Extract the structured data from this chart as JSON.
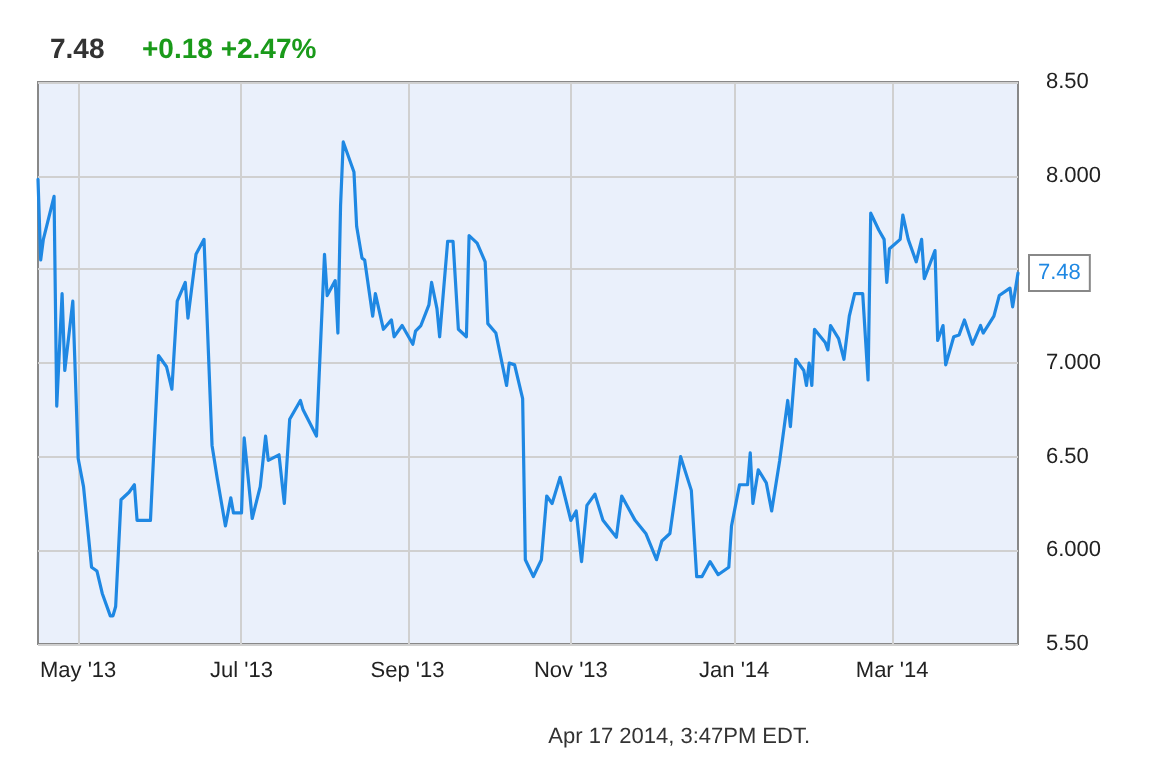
{
  "chart_data": {
    "type": "line",
    "title": "7.48",
    "subtitle": "+0.18 +2.47%",
    "x": [
      "2013-04-16",
      "2013-04-17",
      "2013-04-18",
      "2013-04-22",
      "2013-04-23",
      "2013-04-25",
      "2013-04-26",
      "2013-04-29",
      "2013-05-01",
      "2013-05-03",
      "2013-05-06",
      "2013-05-08",
      "2013-05-10",
      "2013-05-13",
      "2013-05-14",
      "2013-05-15",
      "2013-05-17",
      "2013-05-20",
      "2013-05-22",
      "2013-05-23",
      "2013-05-28",
      "2013-05-31",
      "2013-06-03",
      "2013-06-05",
      "2013-06-07",
      "2013-06-10",
      "2013-06-11",
      "2013-06-14",
      "2013-06-17",
      "2013-06-20",
      "2013-06-22",
      "2013-06-25",
      "2013-06-27",
      "2013-06-28",
      "2013-07-01",
      "2013-07-02",
      "2013-07-05",
      "2013-07-08",
      "2013-07-10",
      "2013-07-11",
      "2013-07-15",
      "2013-07-17",
      "2013-07-19",
      "2013-07-23",
      "2013-07-24",
      "2013-07-29",
      "2013-08-01",
      "2013-08-02",
      "2013-08-05",
      "2013-08-06",
      "2013-08-07",
      "2013-08-08",
      "2013-08-12",
      "2013-08-13",
      "2013-08-15",
      "2013-08-16",
      "2013-08-19",
      "2013-08-20",
      "2013-08-23",
      "2013-08-26",
      "2013-08-27",
      "2013-08-30",
      "2013-09-03",
      "2013-09-04",
      "2013-09-06",
      "2013-09-09",
      "2013-09-10",
      "2013-09-12",
      "2013-09-13",
      "2013-09-16",
      "2013-09-18",
      "2013-09-20",
      "2013-09-23",
      "2013-09-24",
      "2013-09-27",
      "2013-09-30",
      "2013-10-01",
      "2013-10-04",
      "2013-10-07",
      "2013-10-08",
      "2013-10-09",
      "2013-10-11",
      "2013-10-14",
      "2013-10-15",
      "2013-10-18",
      "2013-10-21",
      "2013-10-23",
      "2013-10-25",
      "2013-10-28",
      "2013-11-01",
      "2013-11-03",
      "2013-11-05",
      "2013-11-07",
      "2013-11-10",
      "2013-11-13",
      "2013-11-18",
      "2013-11-20",
      "2013-11-25",
      "2013-11-29",
      "2013-12-03",
      "2013-12-05",
      "2013-12-08",
      "2013-12-12",
      "2013-12-16",
      "2013-12-18",
      "2013-12-20",
      "2013-12-23",
      "2013-12-26",
      "2013-12-30",
      "2013-12-31",
      "2014-01-03",
      "2014-01-06",
      "2014-01-07",
      "2014-01-08",
      "2014-01-10",
      "2014-01-13",
      "2014-01-15",
      "2014-01-18",
      "2014-01-21",
      "2014-01-22",
      "2014-01-24",
      "2014-01-27",
      "2014-01-28",
      "2014-01-29",
      "2014-01-30",
      "2014-01-31",
      "2014-02-04",
      "2014-02-05",
      "2014-02-06",
      "2014-02-09",
      "2014-02-11",
      "2014-02-13",
      "2014-02-15",
      "2014-02-18",
      "2014-02-20",
      "2014-02-21",
      "2014-02-24",
      "2014-02-26",
      "2014-02-27",
      "2014-02-28",
      "2014-03-04",
      "2014-03-05",
      "2014-03-07",
      "2014-03-10",
      "2014-03-12",
      "2014-03-13",
      "2014-03-17",
      "2014-03-18",
      "2014-03-20",
      "2014-03-21",
      "2014-03-24",
      "2014-03-26",
      "2014-03-28",
      "2014-03-31",
      "2014-04-03",
      "2014-04-04",
      "2014-04-08",
      "2014-04-10",
      "2014-04-14",
      "2014-04-15",
      "2014-04-17"
    ],
    "series": [
      {
        "color": "#1f88e3",
        "values": [
          7.98,
          7.55,
          7.66,
          7.89,
          6.77,
          7.37,
          6.96,
          7.33,
          6.49,
          6.34,
          5.91,
          5.89,
          5.77,
          5.65,
          5.65,
          5.7,
          6.27,
          6.31,
          6.35,
          6.16,
          6.16,
          7.04,
          6.98,
          6.86,
          7.33,
          7.43,
          7.24,
          7.58,
          7.66,
          6.56,
          6.38,
          6.13,
          6.28,
          6.2,
          6.2,
          6.6,
          6.17,
          6.34,
          6.61,
          6.48,
          6.51,
          6.25,
          6.7,
          6.8,
          6.75,
          6.61,
          7.58,
          7.36,
          7.44,
          7.16,
          7.84,
          8.18,
          8.02,
          7.73,
          7.56,
          7.55,
          7.25,
          7.37,
          7.18,
          7.23,
          7.14,
          7.2,
          7.1,
          7.17,
          7.2,
          7.31,
          7.43,
          7.29,
          7.14,
          7.65,
          7.65,
          7.18,
          7.14,
          7.68,
          7.64,
          7.54,
          7.21,
          7.16,
          6.95,
          6.88,
          7.0,
          6.99,
          6.81,
          5.95,
          5.86,
          5.95,
          6.29,
          6.25,
          6.39,
          6.16,
          6.21,
          5.94,
          6.24,
          6.3,
          6.16,
          6.07,
          6.29,
          6.16,
          6.09,
          5.95,
          6.05,
          6.09,
          6.5,
          6.32,
          5.86,
          5.86,
          5.94,
          5.87,
          5.91,
          6.13,
          6.35,
          6.35,
          6.52,
          6.25,
          6.43,
          6.36,
          6.21,
          6.48,
          6.8,
          6.66,
          7.02,
          6.96,
          6.88,
          7.0,
          6.88,
          7.18,
          7.11,
          7.07,
          7.2,
          7.13,
          7.02,
          7.25,
          7.37,
          7.37,
          6.91,
          7.8,
          7.71,
          7.66,
          7.43,
          7.61,
          7.66,
          7.79,
          7.66,
          7.54,
          7.66,
          7.45,
          7.6,
          7.12,
          7.2,
          6.99,
          7.14,
          7.15,
          7.23,
          7.1,
          7.2,
          7.16,
          7.25,
          7.36,
          7.4,
          7.3,
          7.48
        ]
      }
    ],
    "xlim": [
      "2013-04-16",
      "2014-04-17"
    ],
    "xticks": [
      {
        "value": "2013-05-01",
        "label": "May '13"
      },
      {
        "value": "2013-07-01",
        "label": "Jul '13"
      },
      {
        "value": "2013-09-01",
        "label": "Sep '13"
      },
      {
        "value": "2013-11-01",
        "label": "Nov '13"
      },
      {
        "value": "2014-01-01",
        "label": "Jan '14"
      },
      {
        "value": "2014-03-01",
        "label": "Mar '14"
      }
    ],
    "ylim": [
      5.5,
      8.5
    ],
    "yticks": [
      {
        "value": 5.5,
        "label": "5.50"
      },
      {
        "value": 6,
        "label": "6.000"
      },
      {
        "value": 6.5,
        "label": "6.50"
      },
      {
        "value": 7,
        "label": "7.000"
      },
      {
        "value": 7.5,
        "label": null
      },
      {
        "value": 8,
        "label": "8.000"
      },
      {
        "value": 8.5,
        "label": "8.50"
      }
    ],
    "annotations": [
      {
        "text": "7.48",
        "x": "2014-04-17",
        "y": 7.48
      },
      "Apr 17 2014, 3:47PM EDT."
    ],
    "grid": true,
    "marker": "none",
    "line_style": "solid"
  }
}
